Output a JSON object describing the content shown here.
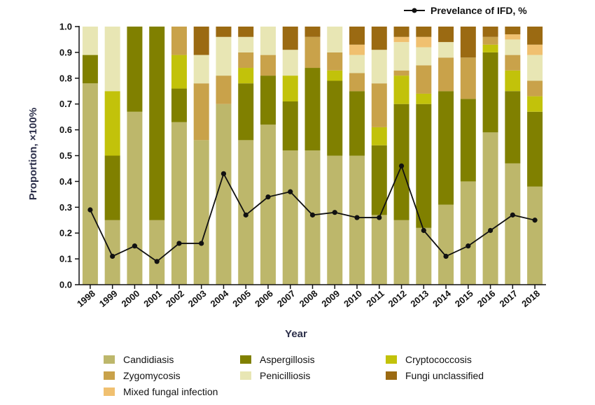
{
  "chart_data": {
    "type": "bar",
    "stacked": true,
    "xlabel": "Year",
    "ylabel": "Proportion, ×100%",
    "ylim": [
      0,
      1.0
    ],
    "yticks": [
      "0.0",
      "0.1",
      "0.2",
      "0.3",
      "0.4",
      "0.5",
      "0.6",
      "0.7",
      "0.8",
      "0.9",
      "1.0"
    ],
    "categories": [
      "1998",
      "1999",
      "2000",
      "2001",
      "2002",
      "2003",
      "2004",
      "2005",
      "2006",
      "2007",
      "2008",
      "2009",
      "2010",
      "2011",
      "2012",
      "2013",
      "2014",
      "2015",
      "2016",
      "2017",
      "2018"
    ],
    "series": [
      {
        "name": "Candidiasis",
        "color": "#bdb76b",
        "values": [
          0.78,
          0.25,
          0.67,
          0.25,
          0.63,
          0.56,
          0.7,
          0.56,
          0.62,
          0.52,
          0.52,
          0.5,
          0.5,
          0.27,
          0.25,
          0.22,
          0.31,
          0.4,
          0.59,
          0.47,
          0.38
        ]
      },
      {
        "name": "Aspergillosis",
        "color": "#808000",
        "values": [
          0.11,
          0.25,
          0.33,
          0.75,
          0.13,
          0.0,
          0.0,
          0.22,
          0.19,
          0.19,
          0.32,
          0.29,
          0.25,
          0.27,
          0.45,
          0.48,
          0.44,
          0.32,
          0.31,
          0.28,
          0.29
        ]
      },
      {
        "name": "Cryptococcosis",
        "color": "#c2c20a",
        "values": [
          0,
          0.25,
          0,
          0,
          0.13,
          0,
          0,
          0.06,
          0,
          0.1,
          0,
          0.04,
          0,
          0.07,
          0.11,
          0.04,
          0,
          0,
          0.03,
          0.08,
          0.06
        ]
      },
      {
        "name": "Zygomycosis",
        "color": "#c9a24a",
        "values": [
          0,
          0,
          0,
          0,
          0.11,
          0.22,
          0.11,
          0.06,
          0.08,
          0,
          0.12,
          0.07,
          0.07,
          0.17,
          0.02,
          0.11,
          0.13,
          0.16,
          0.03,
          0.06,
          0.06
        ]
      },
      {
        "name": "Penicilliosis",
        "color": "#e8e6b4",
        "values": [
          0.11,
          0.25,
          0,
          0,
          0,
          0.11,
          0.15,
          0.06,
          0.11,
          0.1,
          0,
          0.1,
          0.07,
          0.13,
          0.11,
          0.07,
          0.06,
          0,
          0,
          0.06,
          0.1
        ]
      },
      {
        "name": "Mixed fungal infection",
        "color": "#f0c070",
        "values": [
          0,
          0,
          0,
          0,
          0,
          0,
          0,
          0,
          0,
          0,
          0,
          0,
          0.04,
          0,
          0.02,
          0.04,
          0,
          0,
          0,
          0.02,
          0.04
        ]
      },
      {
        "name": "Fungi unclassified",
        "color": "#9b6a12",
        "values": [
          0,
          0,
          0,
          0,
          0,
          0.11,
          0.04,
          0.04,
          0,
          0.09,
          0.04,
          0,
          0.07,
          0.09,
          0.04,
          0.04,
          0.06,
          0.12,
          0.04,
          0.03,
          0.07
        ]
      }
    ],
    "line_series": {
      "name": "Prevelance of IFD, %",
      "color": "#111111",
      "values": [
        0.29,
        0.11,
        0.15,
        0.09,
        0.16,
        0.16,
        0.43,
        0.27,
        0.34,
        0.36,
        0.27,
        0.28,
        0.26,
        0.26,
        0.46,
        0.21,
        0.11,
        0.15,
        0.21,
        0.27,
        0.25
      ]
    },
    "legend": {
      "placement": "bottom",
      "order": [
        "Candidiasis",
        "Aspergillosis",
        "Cryptococcosis",
        "Zygomycosis",
        "Penicilliosis",
        "Fungi unclassified",
        "Mixed fungal infection"
      ]
    },
    "grid": false
  }
}
